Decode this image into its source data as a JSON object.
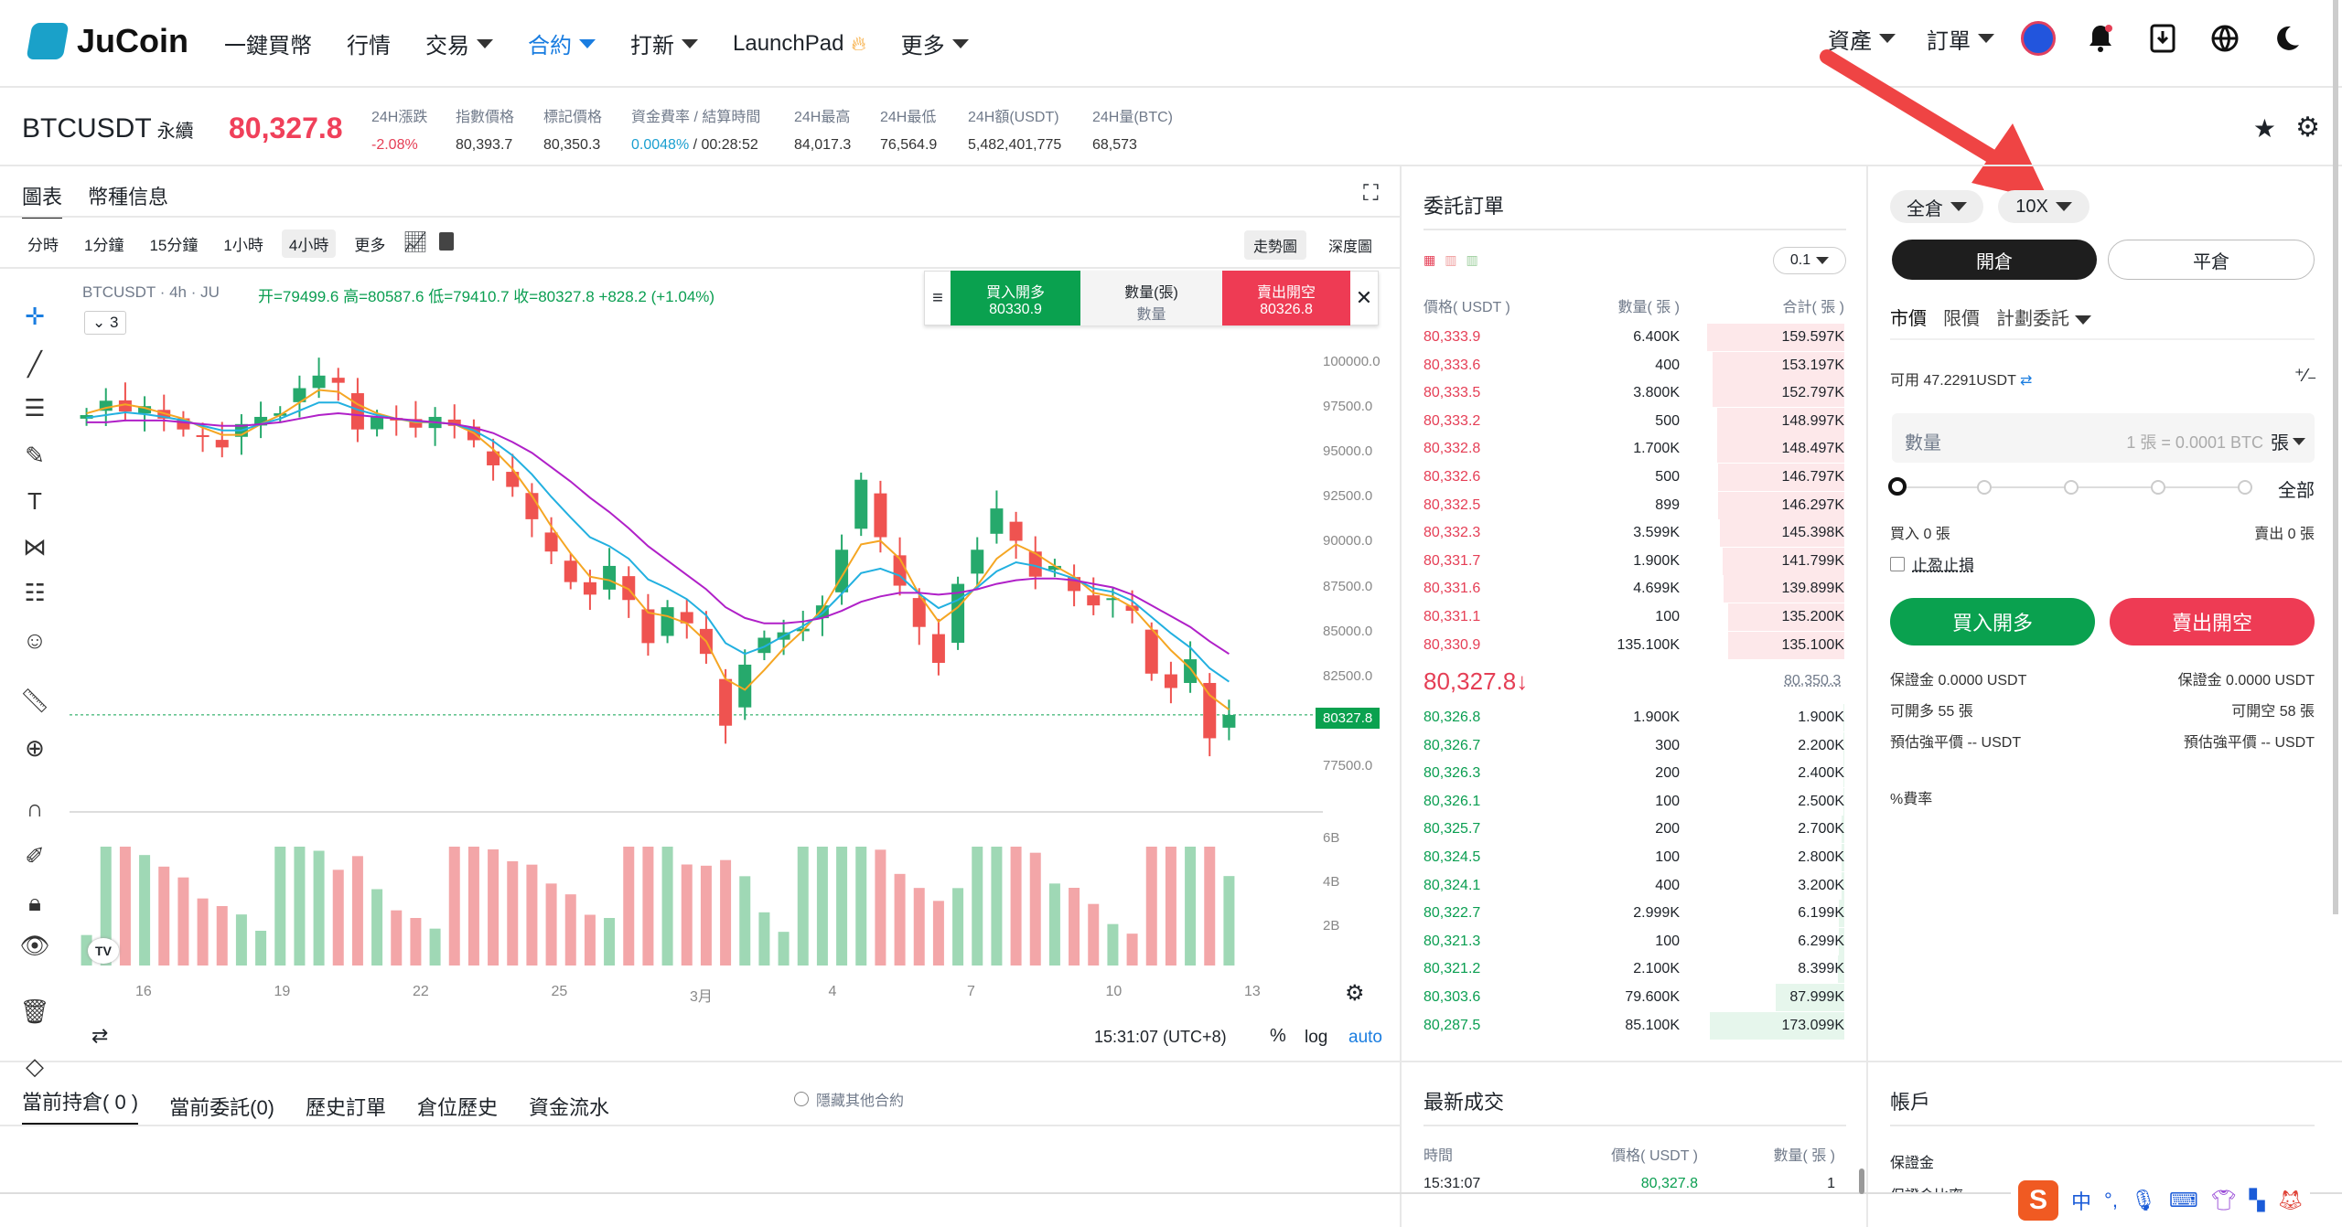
{
  "nav": {
    "logo": "JuCoin",
    "items": [
      {
        "label": "一鍵買幣",
        "caret": false,
        "active": false
      },
      {
        "label": "行情",
        "caret": false,
        "active": false
      },
      {
        "label": "交易",
        "caret": true,
        "active": false
      },
      {
        "label": "合約",
        "caret": true,
        "active": true
      },
      {
        "label": "打新",
        "caret": true,
        "active": false
      },
      {
        "label": "LaunchPad",
        "caret": false,
        "active": false,
        "fire": true
      },
      {
        "label": "更多",
        "caret": true,
        "active": false
      }
    ],
    "assets": "資產",
    "orders": "訂單"
  },
  "ticker": {
    "symbol": "BTCUSDT",
    "type": "永續",
    "last": "80,327.8",
    "stats": [
      {
        "label": "24H漲跌",
        "value": "-2.08%",
        "color": "red"
      },
      {
        "label": "指數價格",
        "value": "80,393.7"
      },
      {
        "label": "標記價格",
        "value": "80,350.3"
      },
      {
        "label": "資金費率 / 結算時間",
        "value": "0.0048%",
        "value2": " / 00:28:52"
      },
      {
        "label": "24H最高",
        "value": "84,017.3"
      },
      {
        "label": "24H最低",
        "value": "76,564.9"
      },
      {
        "label": "24H額(USDT)",
        "value": "5,482,401,775"
      },
      {
        "label": "24H量(BTC)",
        "value": "68,573"
      }
    ]
  },
  "chartPanel": {
    "tab1": "圖表",
    "tab2": "幣種信息",
    "intervals": [
      "分時",
      "1分鐘",
      "15分鐘",
      "1小時",
      "4小時",
      "更多"
    ],
    "activeInterval": "4小時",
    "view1": "走勢圖",
    "view2": "深度圖",
    "legend": "BTCUSDT · 4h · JU",
    "ohlc": "开=79499.6 高=80587.6 低=79410.7 收=80327.8 +828.2 (+1.04%)",
    "collapse": "3",
    "buyBtn": "買入開多",
    "buyPrice": "80330.9",
    "qtyLabel": "數量(張)",
    "qtyPh": "數量",
    "sellBtn": "賣出開空",
    "sellPrice": "80326.8",
    "lastTag": "80327.8",
    "time": "15:31:07 (UTC+8)",
    "pct": "%",
    "log": "log",
    "auto": "auto",
    "volLabels": [
      "6B",
      "4B",
      "2B"
    ]
  },
  "chart_data": {
    "type": "candlestick",
    "title": "BTCUSDT · 4h · JU",
    "ylim": [
      75000,
      102500
    ],
    "yticks": [
      "100000.0",
      "97500.0",
      "95000.0",
      "92500.0",
      "90000.0",
      "87500.0",
      "85000.0",
      "82500.0",
      "77500.0"
    ],
    "xticks": [
      "16",
      "19",
      "22",
      "25",
      "3月",
      "4",
      "7",
      "10",
      "13"
    ],
    "closes": [
      97000,
      97800,
      97200,
      97500,
      96800,
      96200,
      95800,
      95200,
      96500,
      96900,
      97100,
      98500,
      99200,
      98800,
      96200,
      96900,
      96700,
      96300,
      96900,
      96400,
      95600,
      94200,
      93000,
      91200,
      89400,
      87700,
      87000,
      88600,
      86700,
      84300,
      86300,
      85400,
      83700,
      79700,
      83100,
      84600,
      84900,
      85100,
      86400,
      89500,
      93400,
      90200,
      87500,
      85200,
      83200,
      87600,
      89500,
      91800,
      90000,
      88000,
      88600,
      87200,
      86400,
      86800,
      86100,
      82600,
      81800,
      83400,
      79000,
      80300
    ],
    "ma_short": [
      97100,
      97400,
      97600,
      97400,
      97100,
      96800,
      96300,
      95900,
      95900,
      96500,
      97000,
      97700,
      98400,
      98300,
      97600,
      97100,
      96800,
      96600,
      96600,
      96500,
      96000,
      95100,
      94000,
      92500,
      90800,
      89300,
      88000,
      87800,
      87300,
      86000,
      85800,
      85400,
      84400,
      82300,
      81700,
      82800,
      84000,
      85000,
      86200,
      88000,
      89800,
      90000,
      89000,
      87000,
      85500,
      86300,
      87500,
      89000,
      89800,
      89300,
      88600,
      88000,
      87100,
      86900,
      86300,
      85100,
      83900,
      82900,
      81400,
      80600
    ],
    "ma_long": [
      96600,
      96600,
      96700,
      96700,
      96700,
      96600,
      96500,
      96400,
      96400,
      96500,
      96600,
      96800,
      97000,
      97100,
      97000,
      96900,
      96800,
      96700,
      96600,
      96500,
      96300,
      96000,
      95500,
      94900,
      94100,
      93300,
      92400,
      91600,
      90700,
      89700,
      88900,
      88100,
      87300,
      86300,
      85700,
      85400,
      85400,
      85500,
      85700,
      86100,
      86600,
      86900,
      87100,
      87100,
      87000,
      87100,
      87300,
      87600,
      87800,
      87900,
      87900,
      87800,
      87600,
      87400,
      87000,
      86400,
      85800,
      85200,
      84400,
      83700
    ],
    "xlabel": "",
    "ylabel": ""
  },
  "orderbook": {
    "title": "委託訂單",
    "precision": "0.1",
    "headers": [
      "價格( USDT )",
      "數量( 張 )",
      "合計( 張 )"
    ],
    "asks": [
      [
        "80,333.9",
        "6.400K",
        "159.597K",
        1.0
      ],
      [
        "80,333.6",
        "400",
        "153.197K",
        0.96
      ],
      [
        "80,333.5",
        "3.800K",
        "152.797K",
        0.96
      ],
      [
        "80,333.2",
        "500",
        "148.997K",
        0.93
      ],
      [
        "80,332.8",
        "1.700K",
        "148.497K",
        0.93
      ],
      [
        "80,332.6",
        "500",
        "146.797K",
        0.92
      ],
      [
        "80,332.5",
        "899",
        "146.297K",
        0.92
      ],
      [
        "80,332.3",
        "3.599K",
        "145.398K",
        0.91
      ],
      [
        "80,331.7",
        "1.900K",
        "141.799K",
        0.89
      ],
      [
        "80,331.6",
        "4.699K",
        "139.899K",
        0.88
      ],
      [
        "80,331.1",
        "100",
        "135.200K",
        0.85
      ],
      [
        "80,330.9",
        "135.100K",
        "135.100K",
        0.85
      ]
    ],
    "mid": "80,327.8",
    "midArrow": "↓",
    "mark": "80,350.3",
    "bids": [
      [
        "80,326.8",
        "1.900K",
        "1.900K",
        0.01
      ],
      [
        "80,326.7",
        "300",
        "2.200K",
        0.01
      ],
      [
        "80,326.3",
        "200",
        "2.400K",
        0.01
      ],
      [
        "80,326.1",
        "100",
        "2.500K",
        0.01
      ],
      [
        "80,325.7",
        "200",
        "2.700K",
        0.02
      ],
      [
        "80,324.5",
        "100",
        "2.800K",
        0.02
      ],
      [
        "80,324.1",
        "400",
        "3.200K",
        0.02
      ],
      [
        "80,322.7",
        "2.999K",
        "6.199K",
        0.04
      ],
      [
        "80,321.3",
        "100",
        "6.299K",
        0.04
      ],
      [
        "80,321.2",
        "2.100K",
        "8.399K",
        0.05
      ],
      [
        "80,303.6",
        "79.600K",
        "87.999K",
        0.5
      ],
      [
        "80,287.5",
        "85.100K",
        "173.099K",
        0.98
      ]
    ]
  },
  "trade": {
    "margin": "全倉",
    "leverage": "10X",
    "open": "開倉",
    "close": "平倉",
    "types": [
      "市價",
      "限價",
      "計劃委託"
    ],
    "avail": "可用 47.2291USDT",
    "qtyPh": "數量",
    "qtyHint": "1 張 = 0.0001 BTC",
    "unit": "張",
    "all": "全部",
    "buyQty": "買入 0 張",
    "sellQty": "賣出 0 張",
    "tpsl": "止盈止損",
    "buyBtn": "買入開多",
    "sellBtn": "賣出開空",
    "marginL": "保證金 0.0000 USDT",
    "marginR": "保證金 0.0000 USDT",
    "canLongL": "可開多",
    "canLongV": "55",
    "canShortL": "可開空",
    "canShortV": "58",
    "liqL": "預估強平價 --  USDT",
    "liqR": "預估強平價 --  USDT",
    "fee": "費率"
  },
  "bottom": {
    "tabs": [
      "當前持倉( 0 )",
      "當前委託(0)",
      "歷史訂單",
      "倉位歷史",
      "資金流水"
    ],
    "hide": "隱藏其他合約",
    "tradesTitle": "最新成交",
    "tradeHeaders": [
      "時間",
      "價格( USDT )",
      "數量( 張 )"
    ],
    "tradeRow": [
      "15:31:07",
      "80,327.8",
      "1"
    ],
    "accountTitle": "帳戶",
    "accountItem": "保證金",
    "accountItem2": "保證金比率"
  },
  "ime": {
    "lang": "中"
  }
}
